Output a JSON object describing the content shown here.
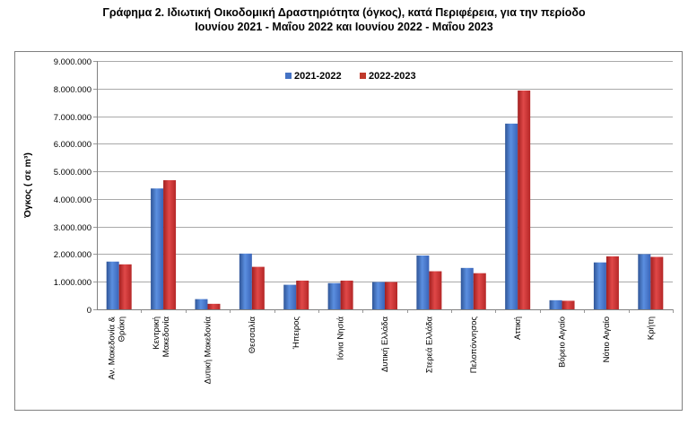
{
  "chart_data": {
    "type": "bar",
    "title": "Γράφημα 2.  Ιδιωτική Οικοδομική Δραστηριότητα (όγκος), κατά Περιφέρεια, για την περίοδο",
    "subtitle": "Ιουνίου 2021 - Μαΐου 2022 και Ιουνίου 2022 - Μαΐου 2023",
    "ylabel": "Όγκος ( σε m³)",
    "xlabel": "",
    "ylim": [
      0,
      9000000
    ],
    "yticks": [
      0,
      1000000,
      2000000,
      3000000,
      4000000,
      5000000,
      6000000,
      7000000,
      8000000,
      9000000
    ],
    "ytick_labels": [
      "0",
      "1.000.000",
      "2.000.000",
      "3.000.000",
      "4.000.000",
      "5.000.000",
      "6.000.000",
      "7.000.000",
      "8.000.000",
      "9.000.000"
    ],
    "grid": true,
    "legend_position": "top-center",
    "categories": [
      [
        "Αν. Μακεδονία &",
        "Θράκη"
      ],
      [
        "Κεντρική",
        "Μακεδονία"
      ],
      [
        "Δυτική Μακεδονία"
      ],
      [
        "Θεσσαλία"
      ],
      [
        "Ήπειρος"
      ],
      [
        "Ιόνια Νησιά"
      ],
      [
        "Δυτική Ελλάδα"
      ],
      [
        "Στερεά Ελλάδα"
      ],
      [
        "Πελοπόννησος"
      ],
      [
        "Αττική"
      ],
      [
        "Βόρειο Αιγαίο"
      ],
      [
        "Νότιο Αιγαίο"
      ],
      [
        "Κρήτη"
      ]
    ],
    "series": [
      {
        "name": "2021-2022",
        "color": "#4472C4",
        "values": [
          1730000,
          4380000,
          370000,
          2020000,
          890000,
          950000,
          990000,
          1950000,
          1500000,
          6730000,
          330000,
          1700000,
          2000000
        ]
      },
      {
        "name": "2022-2023",
        "color": "#C0392B",
        "values": [
          1630000,
          4680000,
          200000,
          1540000,
          1040000,
          1040000,
          990000,
          1380000,
          1310000,
          7930000,
          310000,
          1920000,
          1900000
        ]
      }
    ]
  }
}
